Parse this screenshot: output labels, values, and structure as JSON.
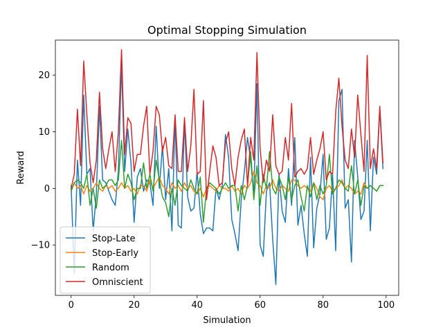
{
  "chart_data": {
    "type": "line",
    "title": "Optimal Stopping Simulation",
    "xlabel": "Simulation",
    "ylabel": "Reward",
    "xlim": [
      -5,
      104
    ],
    "ylim": [
      -18.9,
      26.2
    ],
    "xticks": [
      0,
      20,
      40,
      60,
      80,
      100
    ],
    "yticks": [
      -10,
      0,
      10,
      20
    ],
    "ytick_labels": [
      "−10",
      "0",
      "10",
      "20"
    ],
    "legend_position": "lower-left",
    "grid": false,
    "x": [
      0,
      1,
      2,
      3,
      4,
      5,
      6,
      7,
      8,
      9,
      10,
      11,
      12,
      13,
      14,
      15,
      16,
      17,
      18,
      19,
      20,
      21,
      22,
      23,
      24,
      25,
      26,
      27,
      28,
      29,
      30,
      31,
      32,
      33,
      34,
      35,
      36,
      37,
      38,
      39,
      40,
      41,
      42,
      43,
      44,
      45,
      46,
      47,
      48,
      49,
      50,
      51,
      52,
      53,
      54,
      55,
      56,
      57,
      58,
      59,
      60,
      61,
      62,
      63,
      64,
      65,
      66,
      67,
      68,
      69,
      70,
      71,
      72,
      73,
      74,
      75,
      76,
      77,
      78,
      79,
      80,
      81,
      82,
      83,
      84,
      85,
      86,
      87,
      88,
      89,
      90,
      91,
      92,
      93,
      94,
      95,
      96,
      97,
      98,
      99
    ],
    "series": [
      {
        "name": "Stop-Late",
        "color": "#1f77b4",
        "values": [
          0.5,
          -15,
          5,
          -3,
          16.5,
          2.5,
          3.5,
          -7.5,
          -1,
          14.5,
          1.5,
          1,
          -0.5,
          -2,
          -3,
          3,
          22,
          3,
          10.5,
          4.5,
          -6,
          2,
          3.5,
          -0.5,
          1.5,
          1,
          -3,
          11,
          0,
          7.5,
          -2,
          3.5,
          -7.5,
          12.5,
          -6.5,
          -7,
          12,
          -1.5,
          -4,
          -3.5,
          3,
          -4.5,
          -8,
          -7,
          -7,
          -7.5,
          0,
          -2,
          0.5,
          9.5,
          5.5,
          -5.5,
          -8,
          -11,
          -2,
          3,
          9,
          5,
          -1,
          18.5,
          -10,
          -12,
          -0.5,
          1,
          -9,
          -17,
          2.5,
          -4,
          -6,
          3.5,
          -3,
          9,
          -6.5,
          -3,
          -8,
          -12,
          5.5,
          -10.5,
          -3.5,
          -1,
          6,
          -9,
          -7,
          2.5,
          -11,
          15.5,
          17.5,
          -3.5,
          -2,
          -13,
          8.5,
          2,
          -5.5,
          -4,
          8.5,
          -7.5,
          5.5,
          2.5,
          14,
          3.5
        ]
      },
      {
        "name": "Stop-Early",
        "color": "#ff7f0e",
        "values": [
          -0.5,
          1,
          0,
          0.5,
          -1,
          0.5,
          -0.5,
          0,
          1,
          0,
          -0.5,
          0.5,
          0,
          0.5,
          -0.5,
          0,
          1,
          0,
          0.5,
          -0.5,
          0,
          -1,
          0.5,
          0.5,
          -0.5,
          1.5,
          0,
          1,
          2,
          0.5,
          0,
          -1,
          1,
          0,
          0.5,
          -0.5,
          1,
          0,
          0.5,
          -0.5,
          -1,
          0,
          -1.5,
          0,
          0.5,
          0,
          -0.5,
          0.5,
          0,
          0,
          -0.5,
          0.5,
          -0.5,
          0,
          -1,
          0.5,
          0,
          1,
          3,
          1,
          0.5,
          -1,
          0.5,
          0,
          1.5,
          0,
          -0.5,
          0.5,
          0,
          -0.5,
          1.5,
          1.5,
          0.5,
          0,
          0.5,
          0,
          -0.5,
          1,
          0,
          -1.5,
          -2,
          0,
          0.5,
          -0.5,
          0,
          0.5,
          1.5,
          0,
          0.5,
          0,
          -1,
          -0.5,
          -1,
          1,
          0,
          0.5,
          0,
          -0.5,
          0.5,
          0.5
        ]
      },
      {
        "name": "Random",
        "color": "#2ca02c",
        "values": [
          -0.5,
          1,
          1.5,
          1,
          0,
          2.5,
          -3,
          0,
          -3.5,
          1.5,
          0,
          0.5,
          1.5,
          1.5,
          0.5,
          1.5,
          8.5,
          0,
          2.5,
          1,
          -2,
          0,
          0,
          4.5,
          0,
          2.5,
          -0.5,
          5,
          1.5,
          -1.5,
          -2.5,
          -5,
          0,
          -3,
          1.5,
          0.5,
          0,
          -0.5,
          1.5,
          0,
          -1,
          2,
          -6,
          0,
          1,
          0.5,
          0,
          -1,
          0,
          1,
          0,
          0.5,
          0.5,
          -4,
          0.5,
          -2,
          0.5,
          6.5,
          -2,
          4,
          -3,
          2.5,
          0,
          6.5,
          0,
          -1,
          2,
          0.5,
          -2,
          2,
          -2,
          0.5,
          1.5,
          -1.5,
          -4,
          0.5,
          -1.5,
          1,
          -2,
          0.5,
          -1,
          0.5,
          6,
          -1,
          0,
          1.5,
          1,
          0,
          -0.5,
          4,
          -1,
          1.5,
          -3,
          0.5,
          0,
          0.5,
          0,
          -0.5,
          0.5,
          0.5
        ]
      },
      {
        "name": "Omniscient",
        "color": "#d62728",
        "values": [
          0,
          2.5,
          14,
          4,
          22.5,
          13,
          4.5,
          1,
          5,
          17,
          7,
          3.5,
          7,
          10,
          3,
          10,
          24.5,
          6,
          12.5,
          11.5,
          3,
          6,
          6,
          11,
          14.5,
          2.5,
          6.5,
          14.5,
          13,
          6.5,
          9,
          4,
          3.5,
          13,
          3,
          3,
          12.5,
          3,
          7.5,
          17.5,
          2.5,
          3,
          15.5,
          -2,
          3,
          7.5,
          5.5,
          0.5,
          1,
          8,
          10,
          3.5,
          0.5,
          5.5,
          8.5,
          10.5,
          0.5,
          9,
          5,
          24,
          7,
          1,
          5,
          3,
          13,
          4,
          2.5,
          3,
          9,
          5,
          15,
          2,
          3,
          3.5,
          2.5,
          3.5,
          9,
          2.5,
          5,
          7,
          10,
          1.5,
          3,
          2.5,
          13.5,
          19.5,
          11,
          5,
          3.5,
          10.5,
          5.5,
          16.5,
          9.5,
          3,
          23.5,
          3.5,
          7,
          3.5,
          14.5,
          4.5
        ]
      }
    ]
  }
}
